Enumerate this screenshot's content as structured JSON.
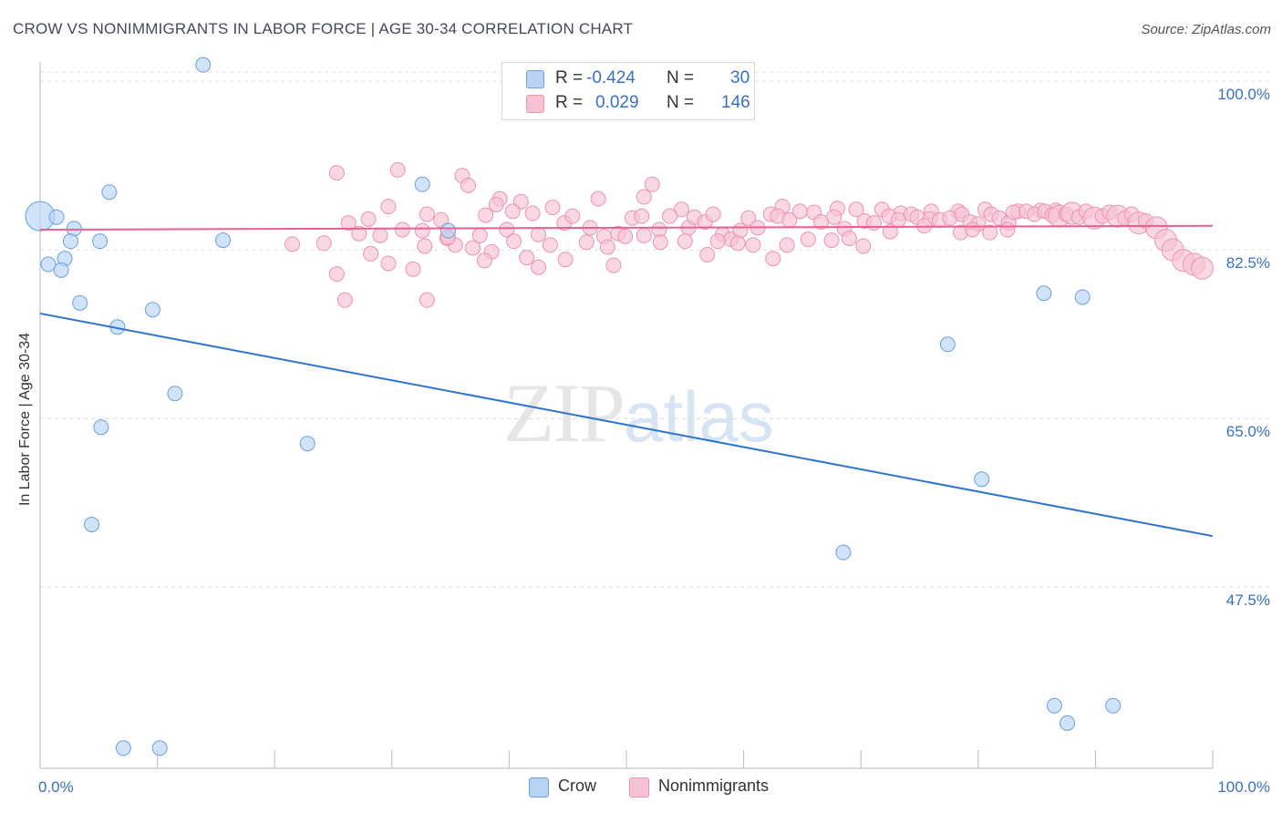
{
  "title": "CROW VS NONIMMIGRANTS IN LABOR FORCE | AGE 30-34 CORRELATION CHART",
  "source": "Source: ZipAtlas.com",
  "watermark": {
    "zip": "ZIP",
    "atlas": "atlas"
  },
  "legend": {
    "rows": [
      {
        "r_label": "R =",
        "r_value": "-0.424",
        "n_label": "N =",
        "n_value": "30"
      },
      {
        "r_label": "R =",
        "r_value": "0.029",
        "n_label": "N =",
        "n_value": "146"
      }
    ]
  },
  "bottom_legend": [
    "Crow",
    "Nonimmigrants"
  ],
  "colors": {
    "crow_fill": "#b8d4f5",
    "crow_stroke": "#6c9fdc",
    "crow_line": "#2d74d1",
    "non_fill": "#f7c3d3",
    "non_stroke": "#e994b0",
    "non_line": "#e7608e",
    "tick_text": "#3a6fc6"
  },
  "chart_data": {
    "type": "scatter",
    "title": "CROW VS NONIMMIGRANTS IN LABOR FORCE | AGE 30-34 CORRELATION CHART",
    "xlabel": "",
    "ylabel": "In Labor Force | Age 30-34",
    "xlim": [
      0,
      100
    ],
    "ylim": [
      28.7,
      102
    ],
    "x_tick_labels": [
      "0.0%",
      "100.0%"
    ],
    "y_ticks": [
      {
        "value": 100,
        "label": "100.0%"
      },
      {
        "value": 82.5,
        "label": "82.5%"
      },
      {
        "value": 65,
        "label": "65.0%"
      },
      {
        "value": 47.5,
        "label": "47.5%"
      }
    ],
    "grid": "horizontal dashed",
    "legend_position": "top-center",
    "series": [
      {
        "name": "Crow",
        "trend": [
          [
            0,
            75.9
          ],
          [
            100,
            52.8
          ]
        ],
        "points": [
          [
            0.0,
            86.0,
            16
          ],
          [
            1.4,
            85.9,
            8
          ],
          [
            2.9,
            84.7,
            8
          ],
          [
            13.9,
            101.7,
            8
          ],
          [
            5.9,
            88.5,
            8
          ],
          [
            2.6,
            83.4,
            8
          ],
          [
            5.1,
            83.4,
            8
          ],
          [
            15.6,
            83.5,
            8
          ],
          [
            0.7,
            81.0,
            8
          ],
          [
            2.1,
            81.6,
            8
          ],
          [
            1.8,
            80.4,
            8
          ],
          [
            3.4,
            77.0,
            8
          ],
          [
            6.6,
            74.5,
            8
          ],
          [
            9.6,
            76.3,
            8
          ],
          [
            32.6,
            89.3,
            8
          ],
          [
            11.5,
            67.6,
            8
          ],
          [
            5.2,
            64.1,
            8
          ],
          [
            22.8,
            62.4,
            8
          ],
          [
            4.4,
            54.0,
            8
          ],
          [
            7.1,
            30.8,
            8
          ],
          [
            10.2,
            30.8,
            8
          ],
          [
            34.8,
            84.5,
            8
          ],
          [
            85.6,
            78.0,
            8
          ],
          [
            88.9,
            77.6,
            8
          ],
          [
            77.4,
            72.7,
            8
          ],
          [
            80.3,
            58.7,
            8
          ],
          [
            68.5,
            51.1,
            8
          ],
          [
            86.5,
            35.2,
            8
          ],
          [
            91.5,
            35.2,
            8
          ],
          [
            87.6,
            33.4,
            8
          ]
        ]
      },
      {
        "name": "Nonimmigrants",
        "trend": [
          [
            0,
            84.6
          ],
          [
            100,
            85.0
          ]
        ],
        "points": [
          [
            25.3,
            90.5,
            8
          ],
          [
            30.5,
            90.8,
            8
          ],
          [
            36.0,
            90.2,
            8
          ],
          [
            36.5,
            89.2,
            8
          ],
          [
            39.2,
            87.8,
            8
          ],
          [
            41.0,
            87.5,
            8
          ],
          [
            47.6,
            87.8,
            8
          ],
          [
            51.5,
            88.0,
            8
          ],
          [
            52.2,
            89.3,
            8
          ],
          [
            54.7,
            86.7,
            8
          ],
          [
            63.3,
            87.0,
            8
          ],
          [
            68.0,
            86.8,
            8
          ],
          [
            71.8,
            86.7,
            8
          ],
          [
            73.4,
            86.3,
            8
          ],
          [
            76.0,
            86.5,
            8
          ],
          [
            78.3,
            86.5,
            8
          ],
          [
            80.6,
            86.7,
            8
          ],
          [
            83.4,
            86.5,
            8
          ],
          [
            85.3,
            86.6,
            8
          ],
          [
            86.6,
            86.6,
            8
          ],
          [
            29.7,
            87.0,
            8
          ],
          [
            26.3,
            85.3,
            8
          ],
          [
            27.2,
            84.2,
            8
          ],
          [
            24.2,
            83.2,
            8
          ],
          [
            28.0,
            85.7,
            8
          ],
          [
            33.0,
            86.2,
            8
          ],
          [
            34.2,
            85.6,
            8
          ],
          [
            35.4,
            83.0,
            8
          ],
          [
            34.7,
            83.7,
            8
          ],
          [
            38.0,
            86.1,
            8
          ],
          [
            38.9,
            87.2,
            8
          ],
          [
            37.5,
            84.0,
            8
          ],
          [
            39.8,
            84.6,
            8
          ],
          [
            40.3,
            86.5,
            8
          ],
          [
            42.0,
            86.3,
            8
          ],
          [
            42.5,
            84.1,
            8
          ],
          [
            43.7,
            86.9,
            8
          ],
          [
            44.7,
            85.3,
            8
          ],
          [
            45.4,
            86.0,
            8
          ],
          [
            46.9,
            84.8,
            8
          ],
          [
            48.1,
            83.9,
            8
          ],
          [
            49.3,
            84.2,
            8
          ],
          [
            50.5,
            85.8,
            8
          ],
          [
            51.3,
            86.0,
            8
          ],
          [
            52.8,
            84.6,
            8
          ],
          [
            53.7,
            86.0,
            8
          ],
          [
            55.3,
            84.8,
            8
          ],
          [
            55.8,
            85.9,
            8
          ],
          [
            56.7,
            85.4,
            8
          ],
          [
            57.4,
            86.2,
            8
          ],
          [
            58.2,
            84.1,
            8
          ],
          [
            58.9,
            83.6,
            8
          ],
          [
            59.7,
            84.5,
            8
          ],
          [
            60.4,
            85.8,
            8
          ],
          [
            61.2,
            84.8,
            8
          ],
          [
            62.3,
            86.2,
            8
          ],
          [
            62.9,
            86.0,
            8
          ],
          [
            63.9,
            85.6,
            8
          ],
          [
            64.8,
            86.5,
            8
          ],
          [
            66.0,
            86.4,
            8
          ],
          [
            66.6,
            85.4,
            8
          ],
          [
            67.7,
            85.9,
            8
          ],
          [
            68.6,
            84.7,
            8
          ],
          [
            69.6,
            86.7,
            8
          ],
          [
            70.3,
            85.5,
            8
          ],
          [
            71.1,
            85.3,
            8
          ],
          [
            72.4,
            86.0,
            8
          ],
          [
            73.2,
            85.6,
            8
          ],
          [
            74.3,
            86.2,
            8
          ],
          [
            74.8,
            85.9,
            8
          ],
          [
            75.9,
            85.7,
            8
          ],
          [
            76.7,
            85.6,
            8
          ],
          [
            77.6,
            85.8,
            8
          ],
          [
            78.6,
            86.2,
            8
          ],
          [
            79.3,
            85.4,
            8
          ],
          [
            80.0,
            85.2,
            8
          ],
          [
            81.1,
            86.2,
            8
          ],
          [
            81.8,
            85.8,
            8
          ],
          [
            82.6,
            85.3,
            8
          ],
          [
            83.0,
            86.4,
            8
          ],
          [
            84.1,
            86.5,
            8
          ],
          [
            84.8,
            86.2,
            8
          ],
          [
            85.7,
            86.5,
            8
          ],
          [
            86.3,
            86.1,
            8
          ],
          [
            86.9,
            86.0,
            12
          ],
          [
            87.5,
            86.2,
            8
          ],
          [
            88.0,
            86.3,
            12
          ],
          [
            88.6,
            85.9,
            8
          ],
          [
            89.2,
            86.5,
            8
          ],
          [
            89.9,
            85.8,
            12
          ],
          [
            90.6,
            86.0,
            8
          ],
          [
            91.2,
            86.4,
            8
          ],
          [
            91.9,
            86.0,
            12
          ],
          [
            92.5,
            85.8,
            8
          ],
          [
            93.1,
            86.2,
            8
          ],
          [
            93.7,
            85.3,
            12
          ],
          [
            94.3,
            85.5,
            8
          ],
          [
            95.2,
            84.8,
            12
          ],
          [
            96.0,
            83.5,
            12
          ],
          [
            96.6,
            82.5,
            12
          ],
          [
            97.5,
            81.4,
            12
          ],
          [
            98.4,
            81.0,
            12
          ],
          [
            99.1,
            80.6,
            12
          ],
          [
            29.0,
            84.0,
            8
          ],
          [
            30.9,
            84.6,
            8
          ],
          [
            32.6,
            84.5,
            8
          ],
          [
            36.9,
            82.7,
            8
          ],
          [
            38.5,
            82.3,
            8
          ],
          [
            40.4,
            83.4,
            8
          ],
          [
            41.5,
            81.7,
            8
          ],
          [
            43.5,
            83.0,
            8
          ],
          [
            44.8,
            81.5,
            8
          ],
          [
            46.6,
            83.3,
            8
          ],
          [
            48.4,
            82.8,
            8
          ],
          [
            49.9,
            83.9,
            8
          ],
          [
            51.5,
            84.0,
            8
          ],
          [
            52.9,
            83.3,
            8
          ],
          [
            55.0,
            83.4,
            8
          ],
          [
            56.9,
            82.0,
            8
          ],
          [
            57.8,
            83.4,
            8
          ],
          [
            59.5,
            83.2,
            8
          ],
          [
            60.8,
            83.0,
            8
          ],
          [
            62.5,
            81.6,
            8
          ],
          [
            63.7,
            83.0,
            8
          ],
          [
            65.5,
            83.6,
            8
          ],
          [
            67.5,
            83.5,
            8
          ],
          [
            69.0,
            83.7,
            8
          ],
          [
            70.2,
            82.9,
            8
          ],
          [
            72.5,
            84.4,
            8
          ],
          [
            75.4,
            85.0,
            8
          ],
          [
            78.5,
            84.3,
            8
          ],
          [
            79.5,
            84.6,
            8
          ],
          [
            81.0,
            84.3,
            8
          ],
          [
            82.5,
            84.6,
            8
          ],
          [
            34.8,
            83.8,
            8
          ],
          [
            32.8,
            82.9,
            8
          ],
          [
            28.2,
            82.1,
            8
          ],
          [
            25.3,
            80.0,
            8
          ],
          [
            21.5,
            83.1,
            8
          ],
          [
            26.0,
            77.3,
            8
          ],
          [
            29.7,
            81.1,
            8
          ],
          [
            33.0,
            77.3,
            8
          ],
          [
            31.8,
            80.5,
            8
          ],
          [
            37.9,
            81.4,
            8
          ],
          [
            42.5,
            80.7,
            8
          ],
          [
            48.9,
            80.9,
            8
          ]
        ]
      }
    ]
  }
}
